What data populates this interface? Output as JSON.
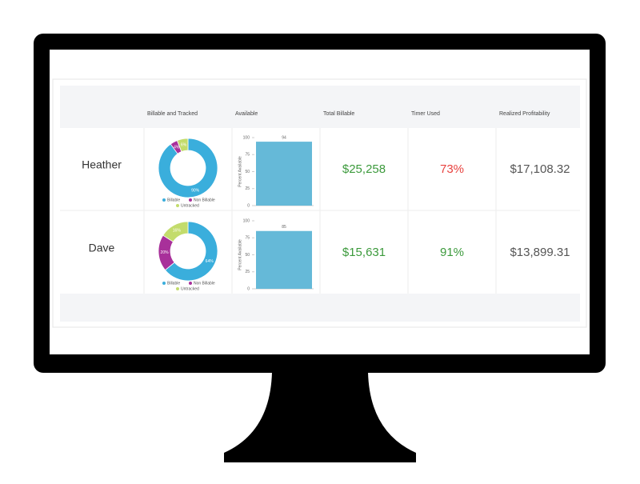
{
  "table": {
    "columns": [
      "Billable and Tracked",
      "Available",
      "Total Billable",
      "Timer Used",
      "Realized Profitability"
    ],
    "rows": [
      {
        "name": "Heather",
        "donut": {
          "type": "pie",
          "categories": [
            "Billable",
            "Non Billable",
            "Untracked"
          ],
          "values": [
            90,
            4,
            6
          ],
          "value_labels": [
            "90%",
            "4%",
            "6%"
          ],
          "colors": [
            "#3aaedc",
            "#a8309a",
            "#c3dc6c"
          ]
        },
        "bar": {
          "type": "bar",
          "values": [
            94
          ],
          "color": "#65b9d8",
          "ylim": [
            0,
            100
          ],
          "yticks": [
            0,
            25,
            50,
            75,
            100
          ],
          "ylabel": "Percent Available"
        },
        "total_billable": {
          "text": "$25,258",
          "color": "#3c9a3c"
        },
        "timer_used": {
          "text": "73%",
          "color": "#e8423f"
        },
        "realized": {
          "text": "$17,108.32",
          "color": "#555555"
        }
      },
      {
        "name": "Dave",
        "donut": {
          "type": "pie",
          "categories": [
            "Billable",
            "Non Billable",
            "Untracked"
          ],
          "values": [
            64,
            20,
            16
          ],
          "value_labels": [
            "64%",
            "20%",
            "16%"
          ],
          "colors": [
            "#3aaedc",
            "#a8309a",
            "#c3dc6c"
          ]
        },
        "bar": {
          "type": "bar",
          "values": [
            85
          ],
          "color": "#65b9d8",
          "ylim": [
            0,
            100
          ],
          "yticks": [
            0,
            25,
            50,
            75,
            100
          ],
          "ylabel": "Percent Available"
        },
        "total_billable": {
          "text": "$15,631",
          "color": "#3c9a3c"
        },
        "timer_used": {
          "text": "91%",
          "color": "#3c9a3c"
        },
        "realized": {
          "text": "$13,899.31",
          "color": "#555555"
        }
      }
    ]
  }
}
